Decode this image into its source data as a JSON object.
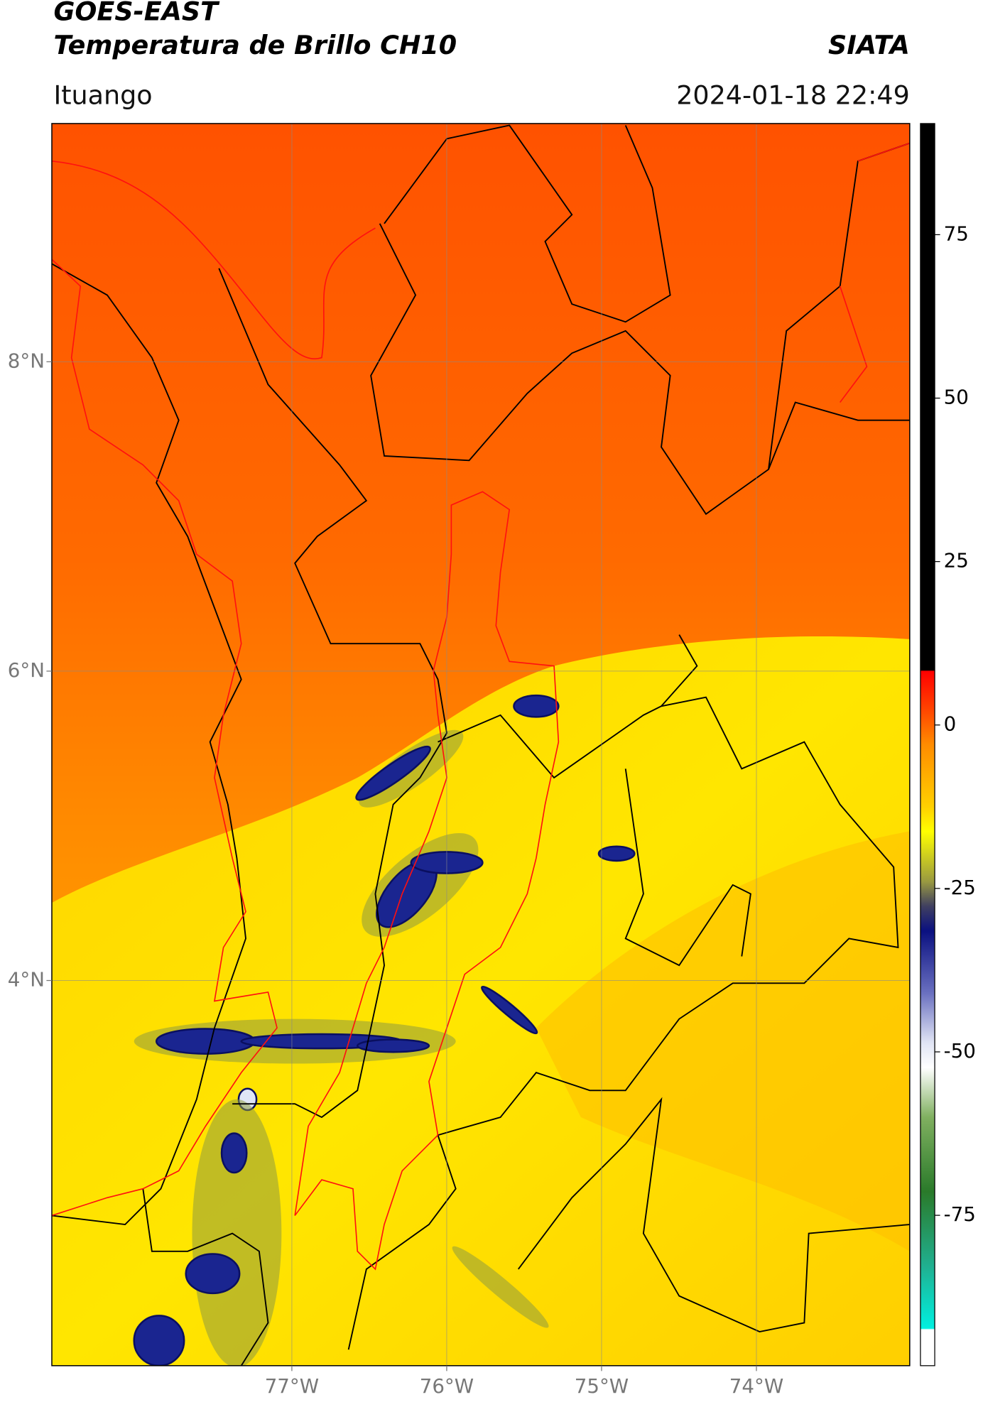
{
  "header": {
    "title": "GOES-EAST",
    "subtitle": "Temperatura de Brillo CH10",
    "brand": "SIATA",
    "location": "Ituango",
    "timestamp": "2024-01-18 22:49"
  },
  "map": {
    "xlim": [
      -78.55,
      -73.01
    ],
    "ylim": [
      1.51,
      9.54
    ],
    "xticks": [
      {
        "value": -77,
        "label": "77°W"
      },
      {
        "value": -76,
        "label": "76°W"
      },
      {
        "value": -75,
        "label": "75°W"
      },
      {
        "value": -74,
        "label": "74°W"
      }
    ],
    "yticks": [
      {
        "value": 4,
        "label": "4°N"
      },
      {
        "value": 6,
        "label": "6°N"
      },
      {
        "value": 8,
        "label": "8°N"
      }
    ],
    "grid": true
  },
  "colorbar": {
    "clim": [
      -98,
      92
    ],
    "ticks": [
      -75,
      -50,
      -25,
      0,
      25,
      50,
      75
    ]
  }
}
